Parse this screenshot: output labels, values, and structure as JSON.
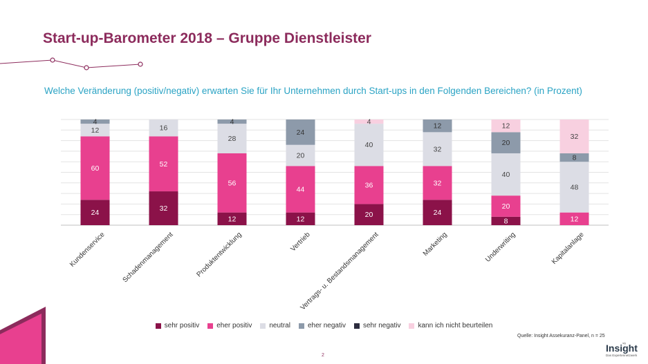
{
  "title": "Start-up-Barometer 2018 – Gruppe Dienstleister",
  "question": "Welche Veränderung (positiv/negativ) erwarten Sie für Ihr Unternehmen durch Start-ups in den Folgenden Bereichen? (in Prozent)",
  "source": "Quelle: Insight Assekuranz-Panel, n = 25",
  "page_number": "2",
  "logo": {
    "mark": "ₛᵢₓ",
    "name": "Insight",
    "tagline": "Das Expertennetzwerk"
  },
  "colors": {
    "title": "#8c2b5c",
    "question": "#2aa3c4",
    "sehr_positiv": "#8b1249",
    "eher_positiv": "#e8408f",
    "neutral": "#dcdde5",
    "eher_negativ": "#8d9aaa",
    "sehr_negativ": "#2c2c3e",
    "kann_nicht": "#f8d0e0"
  },
  "chart_data": {
    "type": "bar",
    "stacked": true,
    "title": "",
    "xlabel": "",
    "ylabel": "",
    "ylim": [
      0,
      100
    ],
    "grid": true,
    "legend_position": "bottom",
    "categories": [
      "Kundenservice",
      "Schadenmanagement",
      "Produktentwicklung",
      "Vertrieb",
      "Vertrags- u. Bestandsmanagement",
      "Marketing",
      "Underwriting",
      "Kapitalanlage"
    ],
    "series": [
      {
        "name": "sehr positiv",
        "color": "#8b1249",
        "label_color": "#ffffff",
        "values": [
          24,
          32,
          12,
          12,
          20,
          24,
          8,
          0
        ]
      },
      {
        "name": "eher positiv",
        "color": "#e8408f",
        "label_color": "#ffffff",
        "values": [
          60,
          52,
          56,
          44,
          36,
          32,
          20,
          12
        ]
      },
      {
        "name": "neutral",
        "color": "#dcdde5",
        "label_color": "#444444",
        "values": [
          12,
          16,
          28,
          20,
          40,
          32,
          40,
          48
        ]
      },
      {
        "name": "eher negativ",
        "color": "#8d9aaa",
        "label_color": "#333333",
        "values": [
          4,
          0,
          4,
          24,
          0,
          12,
          20,
          8
        ]
      },
      {
        "name": "sehr negativ",
        "color": "#2c2c3e",
        "label_color": "#ffffff",
        "values": [
          0,
          0,
          0,
          0,
          0,
          0,
          0,
          0
        ]
      },
      {
        "name": "kann ich nicht beurteilen",
        "color": "#f8d0e0",
        "label_color": "#444444",
        "values": [
          0,
          0,
          0,
          0,
          4,
          0,
          12,
          32
        ]
      }
    ]
  }
}
